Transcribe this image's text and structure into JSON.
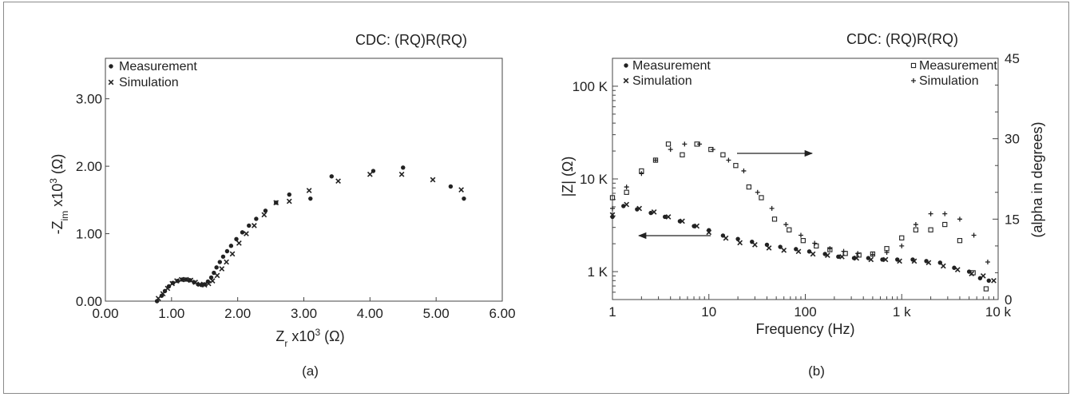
{
  "chart_data": [
    {
      "type": "scatter",
      "caption": "(a)",
      "title": "CDC: (RQ)R(RQ)",
      "xlabel": "Z_r x10^3 (Ω)",
      "ylabel": "-Z_im x10^3 (Ω)",
      "xlim": [
        0,
        6
      ],
      "ylim": [
        0,
        3.6
      ],
      "x_ticks": [
        "0.00",
        "1.00",
        "2.00",
        "3.00",
        "4.00",
        "5.00",
        "6.00"
      ],
      "y_ticks": [
        "0.00",
        "1.00",
        "2.00",
        "3.00"
      ],
      "legend": [
        "Measurement",
        "Simulation"
      ],
      "series": [
        {
          "name": "Measurement",
          "marker": "filled-dot",
          "x": [
            0.78,
            0.85,
            0.9,
            0.96,
            1.02,
            1.09,
            1.16,
            1.22,
            1.28,
            1.34,
            1.4,
            1.45,
            1.5,
            1.55,
            1.6,
            1.64,
            1.68,
            1.73,
            1.78,
            1.84,
            1.9,
            1.98,
            2.07,
            2.17,
            2.28,
            2.42,
            2.58,
            2.78,
            3.1,
            3.42,
            4.05,
            4.5,
            5.22,
            5.42
          ],
          "y": [
            0.0,
            0.08,
            0.15,
            0.22,
            0.27,
            0.3,
            0.32,
            0.32,
            0.31,
            0.28,
            0.25,
            0.24,
            0.25,
            0.29,
            0.35,
            0.42,
            0.5,
            0.58,
            0.66,
            0.74,
            0.82,
            0.92,
            1.02,
            1.12,
            1.22,
            1.34,
            1.46,
            1.58,
            1.52,
            1.85,
            1.93,
            1.98,
            1.7,
            1.52
          ]
        },
        {
          "name": "Simulation",
          "marker": "x-cross",
          "x": [
            0.8,
            0.87,
            0.94,
            1.01,
            1.08,
            1.15,
            1.22,
            1.29,
            1.36,
            1.43,
            1.5,
            1.56,
            1.62,
            1.69,
            1.76,
            1.83,
            1.92,
            2.02,
            2.13,
            2.25,
            2.4,
            2.58,
            2.78,
            3.08,
            3.52,
            4.0,
            4.48,
            4.95,
            5.38
          ],
          "y": [
            0.04,
            0.11,
            0.19,
            0.26,
            0.3,
            0.32,
            0.32,
            0.31,
            0.28,
            0.25,
            0.24,
            0.26,
            0.3,
            0.38,
            0.48,
            0.58,
            0.7,
            0.86,
            1.0,
            1.12,
            1.28,
            1.46,
            1.48,
            1.64,
            1.78,
            1.88,
            1.88,
            1.8,
            1.65
          ]
        }
      ]
    },
    {
      "type": "scatter",
      "caption": "(b)",
      "title": "CDC: (RQ)R(RQ)",
      "xlabel": "Frequency (Hz)",
      "ylabel": "|Z| (Ω)",
      "y2label": "(alpha in degrees)",
      "xscale": "log",
      "yscale": "log",
      "xlim": [
        1,
        10000
      ],
      "ylim": [
        500,
        200000
      ],
      "y2lim": [
        0,
        45
      ],
      "x_ticks": [
        "1",
        "10",
        "100",
        "1 k",
        "10 k"
      ],
      "y_ticks": [
        "1 K",
        "10 K",
        "100 K"
      ],
      "y2_ticks": [
        "0",
        "15",
        "30",
        "45"
      ],
      "legend_left": [
        "Measurement",
        "Simulation"
      ],
      "legend_right": [
        "Measurement",
        "Simulation"
      ],
      "series": [
        {
          "name": "Measurement",
          "axis": "left",
          "marker": "filled-dot",
          "x": [
            1,
            1.3,
            1.8,
            2.5,
            3.5,
            5,
            7,
            10,
            14,
            20,
            28,
            40,
            55,
            80,
            110,
            160,
            220,
            320,
            450,
            630,
            900,
            1300,
            1800,
            2500,
            3500,
            5000,
            6500,
            8000
          ],
          "y": [
            3900,
            5100,
            4700,
            4300,
            3900,
            3500,
            3100,
            2800,
            2450,
            2250,
            2100,
            1950,
            1850,
            1750,
            1650,
            1550,
            1450,
            1400,
            1400,
            1350,
            1350,
            1350,
            1300,
            1250,
            1100,
            1000,
            850,
            800
          ]
        },
        {
          "name": "Simulation",
          "axis": "left",
          "marker": "x-cross",
          "x": [
            1,
            1.4,
            1.9,
            2.7,
            3.8,
            5.3,
            7.5,
            10,
            15,
            21,
            30,
            42,
            60,
            85,
            120,
            170,
            240,
            340,
            480,
            680,
            950,
            1350,
            1900,
            2700,
            3800,
            5300,
            7000,
            9000
          ],
          "y": [
            4100,
            5300,
            4800,
            4400,
            3900,
            3500,
            3100,
            2650,
            2300,
            2050,
            1950,
            1800,
            1700,
            1650,
            1550,
            1500,
            1450,
            1400,
            1350,
            1350,
            1300,
            1300,
            1250,
            1150,
            1050,
            950,
            900,
            800
          ]
        },
        {
          "name": "Measurement",
          "axis": "right",
          "marker": "open-square",
          "x": [
            1,
            1.4,
            2,
            2.8,
            3.8,
            5.3,
            7.5,
            10.5,
            14,
            19,
            26,
            35,
            48,
            68,
            95,
            130,
            180,
            260,
            360,
            500,
            700,
            1000,
            1400,
            2000,
            2800,
            4000,
            5500,
            7500
          ],
          "y": [
            19,
            20,
            24,
            26,
            29,
            27,
            29,
            28,
            27,
            25,
            21,
            19,
            15,
            13,
            11,
            10,
            9.3,
            8.6,
            8.3,
            8.5,
            9.5,
            11.5,
            13,
            13,
            14,
            11,
            5,
            2
          ]
        },
        {
          "name": "Simulation",
          "axis": "right",
          "marker": "plus",
          "x": [
            1,
            1.4,
            2,
            2.8,
            4,
            5.6,
            8,
            11,
            16,
            23,
            32,
            45,
            63,
            90,
            125,
            180,
            250,
            350,
            500,
            700,
            1000,
            1400,
            2000,
            2800,
            4000,
            5600,
            7800
          ],
          "y": [
            17,
            21,
            23.5,
            26,
            28,
            29,
            29,
            28,
            26,
            24,
            20,
            17,
            14,
            12,
            10.5,
            9.5,
            9,
            8.6,
            8.4,
            8.8,
            10,
            14,
            16,
            16,
            15,
            12,
            7
          ]
        }
      ]
    }
  ]
}
